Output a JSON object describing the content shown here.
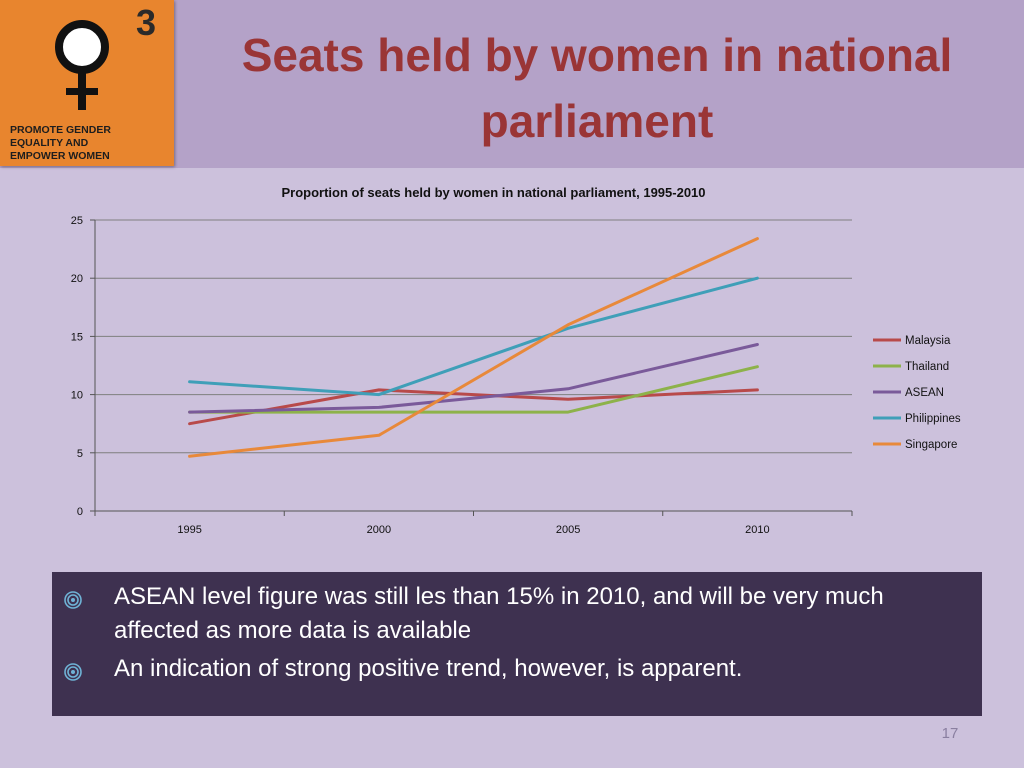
{
  "slide": {
    "title": "Seats held by women in national parliament",
    "page_number": "17"
  },
  "logo": {
    "number": "3",
    "text": "PROMOTE GENDER\nEQUALITY AND\nEMPOWER WOMEN",
    "icon": "female-symbol-icon",
    "color": "#e8852e"
  },
  "bullets": [
    {
      "text": "ASEAN level figure was still les than 15% in 2010, and will be very much affected as more data is available"
    },
    {
      "text": "An indication of strong positive trend, however, is apparent."
    }
  ],
  "colors": {
    "title": "#9a3536",
    "background": "#ccc1dc",
    "header": "#b4a2c8",
    "bullet_box": "#3e3150"
  },
  "chart_data": {
    "type": "line",
    "title": "Proportion of seats held by women in national parliament, 1995-2010",
    "xlabel": "",
    "ylabel": "",
    "x": [
      "1995",
      "2000",
      "2005",
      "2010"
    ],
    "ylim": [
      0,
      25
    ],
    "yticks": [
      0,
      5,
      10,
      15,
      20,
      25
    ],
    "grid": true,
    "legend_position": "right",
    "series": [
      {
        "name": "Malaysia",
        "color": "#b84a4a",
        "values": [
          7.5,
          10.4,
          9.6,
          10.4
        ]
      },
      {
        "name": "Thailand",
        "color": "#8db24a",
        "values": [
          8.5,
          8.5,
          8.5,
          12.4
        ]
      },
      {
        "name": "ASEAN",
        "color": "#7a5a9a",
        "values": [
          8.5,
          8.9,
          10.5,
          14.3
        ]
      },
      {
        "name": "Philippines",
        "color": "#3f9fb8",
        "values": [
          11.1,
          10.0,
          15.7,
          20.0
        ]
      },
      {
        "name": "Singapore",
        "color": "#e8893a",
        "values": [
          4.7,
          6.5,
          16.0,
          23.4
        ]
      }
    ]
  }
}
